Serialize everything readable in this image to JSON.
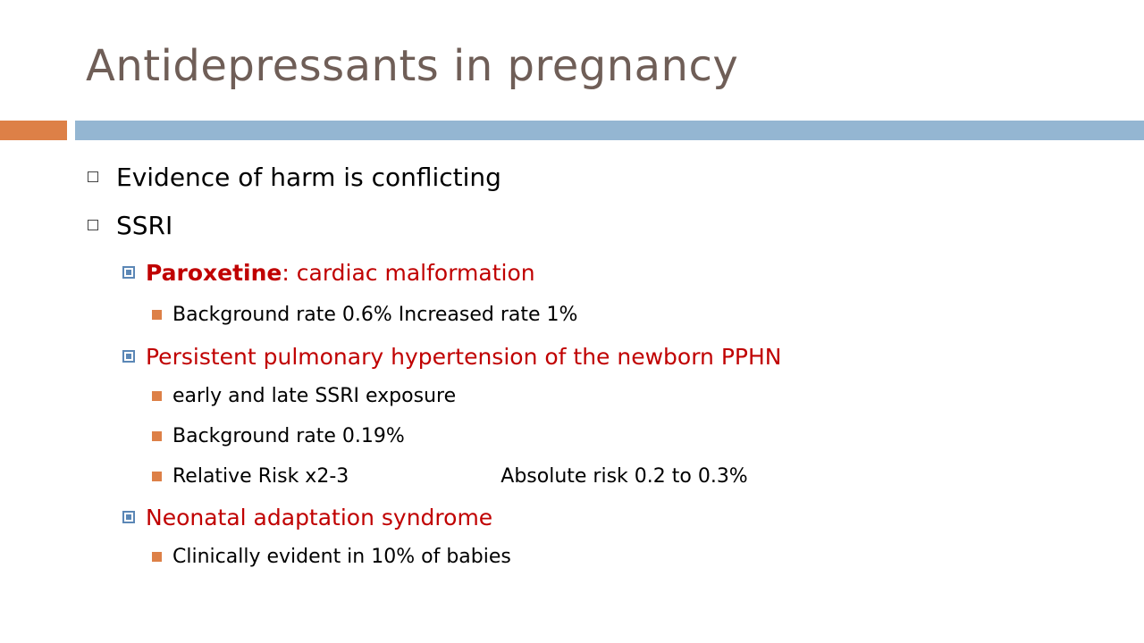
{
  "title": "Antidepressants in pregnancy",
  "bullets": {
    "evidence": "Evidence of harm is conflicting",
    "ssri": "SSRI",
    "paroxetine_bold": "Paroxetine",
    "paroxetine_rest": ": cardiac malformation",
    "paroxetine_rate": "Background rate 0.6% Increased rate 1%",
    "pphn": "Persistent pulmonary hypertension of the newborn PPHN",
    "pphn_exposure": "early and late SSRI exposure",
    "pphn_rate": "Background rate 0.19%",
    "pphn_rr": "Relative Risk x2-3",
    "pphn_abs": "Absolute risk 0.2 to 0.3%",
    "neonatal": "Neonatal adaptation syndrome",
    "neonatal_detail": "Clinically evident in 10% of babies"
  },
  "colors": {
    "title": "#6f5e57",
    "accent_orange": "#dd8047",
    "accent_blue": "#94b6d2",
    "highlight_red": "#c00000"
  }
}
